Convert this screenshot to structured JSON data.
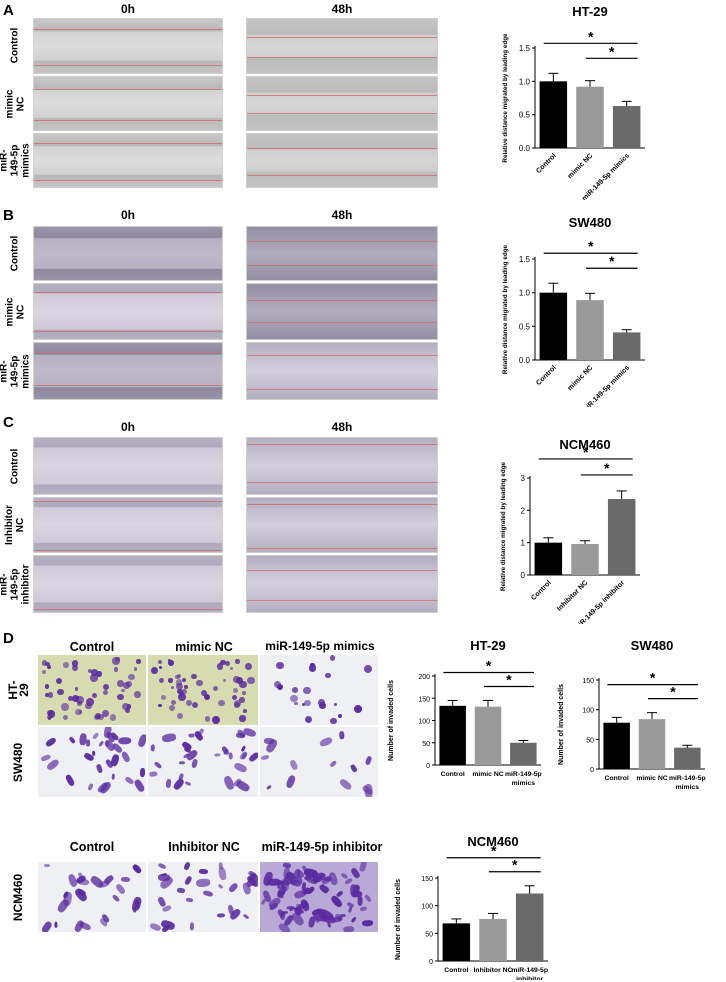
{
  "panels": {
    "A": {
      "letter": "A",
      "col_0h": "0h",
      "col_48h": "48h",
      "rows": [
        "Control",
        "mimic\nNC",
        "miR-149-5p\nmimics"
      ]
    },
    "B": {
      "letter": "B",
      "col_0h": "0h",
      "col_48h": "48h",
      "rows": [
        "Control",
        "mimic\nNC",
        "miR-149-5p\nmimics"
      ]
    },
    "C": {
      "letter": "C",
      "col_0h": "0h",
      "col_48h": "48h",
      "rows": [
        "Control",
        "Inhibitor\nNC",
        "miR-149-5p\ninhibitor"
      ]
    },
    "D": {
      "letter": "D",
      "top_cols": [
        "Control",
        "mimic NC",
        "miR-149-5p mimics"
      ],
      "top_rows": [
        "HT-29",
        "SW480"
      ],
      "bottom_cols": [
        "Control",
        "Inhibitor NC",
        "miR-149-5p inhibitor"
      ],
      "bottom_row": "NCM460"
    }
  },
  "chart_data": [
    {
      "id": "A_chart",
      "type": "bar",
      "title": "HT-29",
      "ylabel": "Relative distance migrated by leading edge",
      "categories": [
        "Control",
        "mimic NC",
        "miR-149-5p mimics"
      ],
      "values": [
        1.0,
        0.92,
        0.63
      ],
      "errors": [
        0.12,
        0.09,
        0.07
      ],
      "colors": [
        "#000000",
        "#9a9a9a",
        "#6a6a6a"
      ],
      "ylim": [
        0,
        1.5
      ],
      "yticks": [
        "0.0",
        "0.5",
        "1.0",
        "1.5"
      ],
      "tick_values": [
        0,
        0.5,
        1.0,
        1.5
      ],
      "significance": [
        {
          "from": 0,
          "to": 2,
          "label": "*"
        },
        {
          "from": 1,
          "to": 2,
          "label": "*"
        }
      ],
      "rotate_labels": true
    },
    {
      "id": "B_chart",
      "type": "bar",
      "title": "SW480",
      "ylabel": "Relative distance migrated by leading edge",
      "categories": [
        "Control",
        "mimic NC",
        "miR-149-5p mimics"
      ],
      "values": [
        1.0,
        0.89,
        0.41
      ],
      "errors": [
        0.14,
        0.1,
        0.04
      ],
      "colors": [
        "#000000",
        "#9a9a9a",
        "#6a6a6a"
      ],
      "ylim": [
        0,
        1.5
      ],
      "yticks": [
        "0.0",
        "0.5",
        "1.0",
        "1.5"
      ],
      "tick_values": [
        0,
        0.5,
        1.0,
        1.5
      ],
      "significance": [
        {
          "from": 0,
          "to": 2,
          "label": "*"
        },
        {
          "from": 1,
          "to": 2,
          "label": "*"
        }
      ],
      "rotate_labels": true
    },
    {
      "id": "C_chart",
      "type": "bar",
      "title": "NCM460",
      "ylabel": "Relative distance migrated by leading edge",
      "categories": [
        "Control",
        "Inhibitor NC",
        "miR-149-5p inhibitor"
      ],
      "values": [
        1.0,
        0.96,
        2.35
      ],
      "errors": [
        0.15,
        0.1,
        0.25
      ],
      "colors": [
        "#000000",
        "#9a9a9a",
        "#6a6a6a"
      ],
      "ylim": [
        0,
        3
      ],
      "yticks": [
        "0",
        "1",
        "2",
        "3"
      ],
      "tick_values": [
        0,
        1,
        2,
        3
      ],
      "significance": [
        {
          "from": 0,
          "to": 2,
          "label": "*"
        },
        {
          "from": 1,
          "to": 2,
          "label": "*"
        }
      ],
      "rotate_labels": true
    },
    {
      "id": "D_ht29",
      "type": "bar",
      "title": "HT-29",
      "ylabel": "Number of invaded cells",
      "categories": [
        "Control",
        "mimic NC",
        "miR-149-5p\nmimics"
      ],
      "values": [
        133,
        131,
        50
      ],
      "errors": [
        12,
        14,
        5
      ],
      "colors": [
        "#000000",
        "#9a9a9a",
        "#6a6a6a"
      ],
      "ylim": [
        0,
        200
      ],
      "yticks": [
        "0",
        "50",
        "100",
        "150",
        "200"
      ],
      "tick_values": [
        0,
        50,
        100,
        150,
        200
      ],
      "significance": [
        {
          "from": 0,
          "to": 2,
          "label": "*"
        },
        {
          "from": 1,
          "to": 2,
          "label": "*"
        }
      ],
      "rotate_labels": false
    },
    {
      "id": "D_sw480",
      "type": "bar",
      "title": "SW480",
      "ylabel": "Number of invaded cells",
      "categories": [
        "Control",
        "mimic NC",
        "miR-149-5p\nmimics"
      ],
      "values": [
        78,
        84,
        36
      ],
      "errors": [
        9,
        11,
        4
      ],
      "colors": [
        "#000000",
        "#9a9a9a",
        "#6a6a6a"
      ],
      "ylim": [
        0,
        150
      ],
      "yticks": [
        "0",
        "50",
        "100",
        "150"
      ],
      "tick_values": [
        0,
        50,
        100,
        150
      ],
      "significance": [
        {
          "from": 0,
          "to": 2,
          "label": "*"
        },
        {
          "from": 1,
          "to": 2,
          "label": "*"
        }
      ],
      "rotate_labels": false
    },
    {
      "id": "D_ncm460",
      "type": "bar",
      "title": "NCM460",
      "ylabel": "Number of invaded cells",
      "categories": [
        "Control",
        "Inhibitor NC",
        "miR-149-5p\ninhibitor"
      ],
      "values": [
        68,
        76,
        122
      ],
      "errors": [
        8,
        10,
        14
      ],
      "colors": [
        "#000000",
        "#9a9a9a",
        "#6a6a6a"
      ],
      "ylim": [
        0,
        150
      ],
      "yticks": [
        "0",
        "50",
        "100",
        "150"
      ],
      "tick_values": [
        0,
        50,
        100,
        150
      ],
      "significance": [
        {
          "from": 0,
          "to": 2,
          "label": "*"
        },
        {
          "from": 1,
          "to": 2,
          "label": "*"
        }
      ],
      "rotate_labels": false
    }
  ]
}
